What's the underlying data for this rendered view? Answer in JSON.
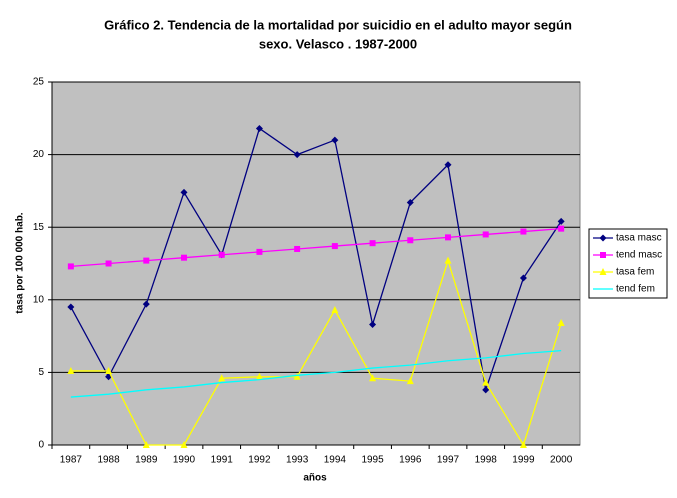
{
  "chart_data": {
    "type": "line",
    "title": [
      "Gráfico 2. Tendencia de la mortalidad por suicidio en el adulto mayor según",
      "sexo. Velasco . 1987-2000"
    ],
    "x_label": "años",
    "y_label": "tasa por 100 000 hab.",
    "categories": [
      "1987",
      "1988",
      "1989",
      "1990",
      "1991",
      "1992",
      "1993",
      "1994",
      "1995",
      "1996",
      "1997",
      "1998",
      "1999",
      "2000"
    ],
    "ylim": [
      0,
      25
    ],
    "yticks": [
      0,
      5,
      10,
      15,
      20,
      25
    ],
    "grid": true,
    "legend": "right",
    "series": [
      {
        "name": "tasa masc",
        "color": "#000080",
        "marker": "diamond",
        "values": [
          9.5,
          4.7,
          9.7,
          17.4,
          13.1,
          21.8,
          20.0,
          21.0,
          8.3,
          16.7,
          19.3,
          3.8,
          11.5,
          15.4
        ]
      },
      {
        "name": "tend masc",
        "color": "#ff00ff",
        "marker": "square",
        "values": [
          12.3,
          12.5,
          12.7,
          12.9,
          13.1,
          13.3,
          13.5,
          13.7,
          13.9,
          14.1,
          14.3,
          14.5,
          14.7,
          14.9
        ]
      },
      {
        "name": "tasa fem",
        "color": "#ffff00",
        "marker": "triangle",
        "values": [
          5.1,
          5.1,
          0,
          0,
          4.6,
          4.7,
          4.7,
          9.3,
          4.6,
          4.4,
          12.7,
          4.3,
          0,
          8.4
        ]
      },
      {
        "name": "tend fem",
        "color": "#00ffff",
        "marker": "none",
        "values": [
          3.3,
          3.5,
          3.8,
          4.0,
          4.3,
          4.5,
          4.8,
          5.0,
          5.3,
          5.5,
          5.8,
          6.0,
          6.3,
          6.5
        ]
      }
    ]
  }
}
